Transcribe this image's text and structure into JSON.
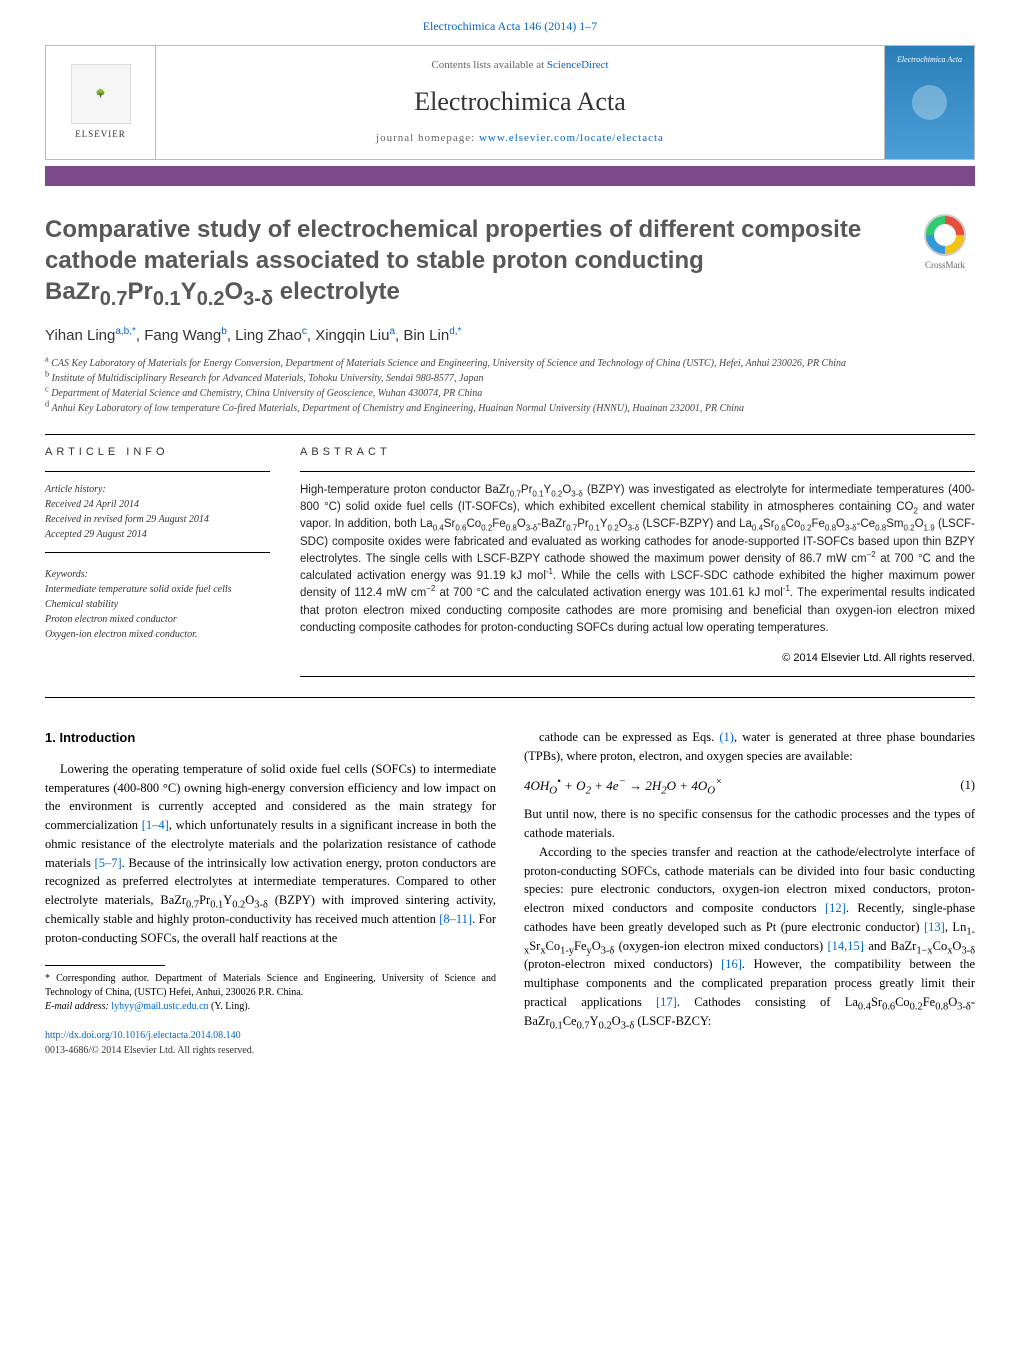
{
  "top_citation": "Electrochimica Acta 146 (2014) 1–7",
  "header": {
    "contents_prefix": "Contents lists available at ",
    "contents_link": "ScienceDirect",
    "journal_name": "Electrochimica Acta",
    "homepage_prefix": "journal homepage: ",
    "homepage_link": "www.elsevier.com/locate/electacta",
    "elsevier_label": "ELSEVIER",
    "cover_label": "Electrochimica Acta"
  },
  "crossmark_label": "CrossMark",
  "title_html": "Comparative study of electrochemical properties of different composite cathode materials associated to stable proton conducting BaZr<sub>0.7</sub>Pr<sub>0.1</sub>Y<sub>0.2</sub>O<sub>3-δ</sub> electrolyte",
  "authors_html": "Yihan Ling<sup>a,b,*</sup>, Fang Wang<sup>b</sup>, Ling Zhao<sup>c</sup>, Xingqin Liu<sup>a</sup>, Bin Lin<sup>d,*</sup>",
  "affiliations": [
    "a CAS Key Laboratory of Materials for Energy Conversion, Department of Materials Science and Engineering, University of Science and Technology of China (USTC), Hefei, Anhui 230026, PR China",
    "b Institute of Multidisciplinary Research for Advanced Materials, Tohoku University, Sendai 980-8577, Japan",
    "c Department of Material Science and Chemistry, China University of Geoscience, Wuhan 430074, PR China",
    "d Anhui Key Laboratory of low temperature Co-fired Materials, Department of Chemistry and Engineering, Huainan Normal University (HNNU), Huainan 232001, PR China"
  ],
  "article_info_head": "ARTICLE INFO",
  "abstract_head": "ABSTRACT",
  "history": {
    "label": "Article history:",
    "received": "Received 24 April 2014",
    "revised": "Received in revised form 29 August 2014",
    "accepted": "Accepted 29 August 2014"
  },
  "keywords": {
    "label": "Keywords:",
    "items": [
      "Intermediate temperature solid oxide fuel cells",
      "Chemical stability",
      "Proton electron mixed conductor",
      "Oxygen-ion electron mixed conductor."
    ]
  },
  "abstract_html": "High-temperature proton conductor BaZr<sub>0.7</sub>Pr<sub>0.1</sub>Y<sub>0.2</sub>O<sub>3-δ</sub> (BZPY) was investigated as electrolyte for intermediate temperatures (400-800 °C) solid oxide fuel cells (IT-SOFCs), which exhibited excellent chemical stability in atmospheres containing CO<sub>2</sub> and water vapor. In addition, both La<sub>0.4</sub>Sr<sub>0.6</sub>Co<sub>0.2</sub>Fe<sub>0.8</sub>O<sub>3-δ</sub>-BaZr<sub>0.7</sub>Pr<sub>0.1</sub>Y<sub>0.2</sub>O<sub>3-δ</sub> (LSCF-BZPY) and La<sub>0.4</sub>Sr<sub>0.6</sub>Co<sub>0.2</sub>Fe<sub>0.8</sub>O<sub>3-δ</sub>-Ce<sub>0.8</sub>Sm<sub>0.2</sub>O<sub>1.9</sub> (LSCF-SDC) composite oxides were fabricated and evaluated as working cathodes for anode-supported IT-SOFCs based upon thin BZPY electrolytes. The single cells with LSCF-BZPY cathode showed the maximum power density of 86.7 mW cm<sup>−2</sup> at 700 °C and the calculated activation energy was 91.19 kJ mol<sup>-1</sup>. While the cells with LSCF-SDC cathode exhibited the higher maximum power density of 112.4 mW cm<sup>−2</sup> at 700 °C and the calculated activation energy was 101.61 kJ mol<sup>-1</sup>. The experimental results indicated that proton electron mixed conducting composite cathodes are more promising and beneficial than oxygen-ion electron mixed conducting composite cathodes for proton-conducting SOFCs during actual low operating temperatures.",
  "copyright": "© 2014 Elsevier Ltd. All rights reserved.",
  "intro_heading": "1. Introduction",
  "intro_p1_html": "Lowering the operating temperature of solid oxide fuel cells (SOFCs) to intermediate temperatures (400-800 °C) owning high-energy conversion efficiency and low impact on the environment is currently accepted and considered as the main strategy for commercialization <span class=\"ref-link\">[1–4]</span>, which unfortunately results in a significant increase in both the ohmic resistance of the electrolyte materials and the polarization resistance of cathode materials <span class=\"ref-link\">[5–7]</span>. Because of the intrinsically low activation energy, proton conductors are recognized as preferred electrolytes at intermediate temperatures. Compared to other electrolyte materials, BaZr<sub>0.7</sub>Pr<sub>0.1</sub>Y<sub>0.2</sub>O<sub>3-δ</sub> (BZPY) with improved sintering activity, chemically stable and highly proton-conductivity has received much attention <span class=\"ref-link\">[8–11]</span>. For proton-conducting SOFCs, the overall half reactions at the",
  "col2_p1_html": "cathode can be expressed as Eqs. <span class=\"ref-link\">(1)</span>, water is generated at three phase boundaries (TPBs), where proton, electron, and oxygen species are available:",
  "equation_html": "4OH<sub>O</sub><sup>•</sup> + O<sub>2</sub> + 4e<sup>−</sup> → 2H<sub>2</sub>O + 4O<sub>O</sub><sup>×</sup>",
  "equation_num": "(1)",
  "col2_p2": "But until now, there is no specific consensus for the cathodic processes and the types of cathode materials.",
  "col2_p3_html": "According to the species transfer and reaction at the cathode/electrolyte interface of proton-conducting SOFCs, cathode materials can be divided into four basic conducting species: pure electronic conductors, oxygen-ion electron mixed conductors, proton-electron mixed conductors and composite conductors <span class=\"ref-link\">[12]</span>. Recently, single-phase cathodes have been greatly developed such as Pt (pure electronic conductor) <span class=\"ref-link\">[13]</span>, Ln<sub>1-x</sub>Sr<sub>x</sub>Co<sub>1-y</sub>Fe<sub>y</sub>O<sub>3-δ</sub> (oxygen-ion electron mixed conductors) <span class=\"ref-link\">[14,15]</span> and BaZr<sub>1−x</sub>Co<sub>x</sub>O<sub>3-δ</sub> (proton-electron mixed conductors) <span class=\"ref-link\">[16]</span>. However, the compatibility between the multiphase components and the complicated preparation process greatly limit their practical applications <span class=\"ref-link\">[17]</span>. Cathodes consisting of La<sub>0.4</sub>Sr<sub>0.6</sub>Co<sub>0.2</sub>Fe<sub>0.8</sub>O<sub>3-δ</sub>-BaZr<sub>0.1</sub>Ce<sub>0.7</sub>Y<sub>0.2</sub>O<sub>3-δ</sub> (LSCF-BZCY:",
  "footnote_html": "* Corresponding author. Department of Materials Science and Engineering, University of Science and Technology of China, (USTC) Hefei, Anhui, 230026 P.R. China.",
  "footnote_email_label": "E-mail address: ",
  "footnote_email": "lyhyy@mail.ustc.edu.cn",
  "footnote_email_suffix": " (Y. Ling).",
  "doi_link": "http://dx.doi.org/10.1016/j.electacta.2014.08.140",
  "issn_line": "0013-4686/© 2014 Elsevier Ltd. All rights reserved.",
  "colors": {
    "link": "#0066cc",
    "purple_bar": "#7a4a8a",
    "title_color": "#585858",
    "cover_gradient_top": "#2a7fb8",
    "cover_gradient_bottom": "#4a9fd8"
  }
}
